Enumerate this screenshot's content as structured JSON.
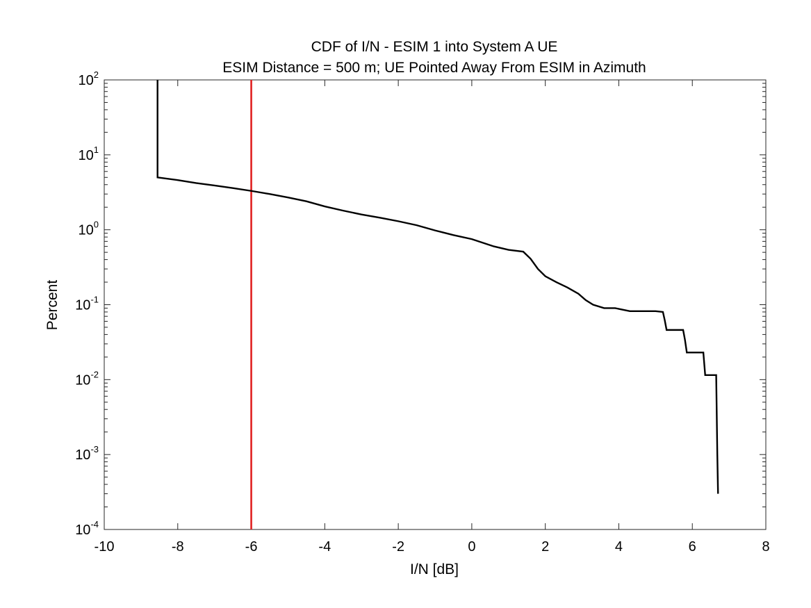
{
  "chart_data": {
    "type": "line",
    "title": "CDF of I/N - ESIM 1 into System A UE",
    "subtitle": "ESIM Distance = 500 m; UE Pointed Away From ESIM in Azimuth",
    "xlabel": "I/N [dB]",
    "ylabel": "Percent",
    "xlim": [
      -10,
      8
    ],
    "ylim": [
      0.0001,
      100
    ],
    "yscale": "log",
    "grid": false,
    "xticks": [
      -10,
      -8,
      -6,
      -4,
      -2,
      0,
      2,
      4,
      6,
      8
    ],
    "xtick_labels": [
      "-10",
      "-8",
      "-6",
      "-4",
      "-2",
      "0",
      "2",
      "4",
      "6",
      "8"
    ],
    "yticks": [
      0.0001,
      0.001,
      0.01,
      0.1,
      1,
      10,
      100
    ],
    "ytick_labels": [
      {
        "base": "10",
        "exp": "-4"
      },
      {
        "base": "10",
        "exp": "-3"
      },
      {
        "base": "10",
        "exp": "-2"
      },
      {
        "base": "10",
        "exp": "-1"
      },
      {
        "base": "10",
        "exp": "0"
      },
      {
        "base": "10",
        "exp": "1"
      },
      {
        "base": "10",
        "exp": "2"
      }
    ],
    "series": [
      {
        "color": "#000000",
        "x": [
          -8.55,
          -8.55,
          -8.0,
          -7.5,
          -7.0,
          -6.5,
          -6.0,
          -5.5,
          -5.0,
          -4.5,
          -4.0,
          -3.5,
          -3.0,
          -2.5,
          -2.0,
          -1.5,
          -1.0,
          -0.5,
          0.0,
          0.3,
          0.6,
          1.0,
          1.4,
          1.6,
          1.8,
          2.0,
          2.3,
          2.6,
          2.9,
          3.1,
          3.3,
          3.6,
          3.9,
          4.3,
          4.6,
          5.0,
          5.2,
          5.25,
          5.3,
          5.75,
          5.8,
          5.85,
          6.3,
          6.35,
          6.65,
          6.65,
          6.68,
          6.7
        ],
        "y": [
          100,
          5.0,
          4.6,
          4.2,
          3.9,
          3.6,
          3.3,
          3.0,
          2.7,
          2.4,
          2.05,
          1.8,
          1.6,
          1.45,
          1.3,
          1.15,
          0.98,
          0.85,
          0.75,
          0.67,
          0.6,
          0.54,
          0.51,
          0.41,
          0.3,
          0.24,
          0.2,
          0.17,
          0.14,
          0.115,
          0.1,
          0.09,
          0.09,
          0.082,
          0.082,
          0.082,
          0.08,
          0.062,
          0.046,
          0.046,
          0.034,
          0.023,
          0.023,
          0.0115,
          0.0115,
          0.011,
          0.001,
          0.0003
        ]
      }
    ],
    "threshold": {
      "x": -6,
      "color": "#e02020"
    }
  }
}
